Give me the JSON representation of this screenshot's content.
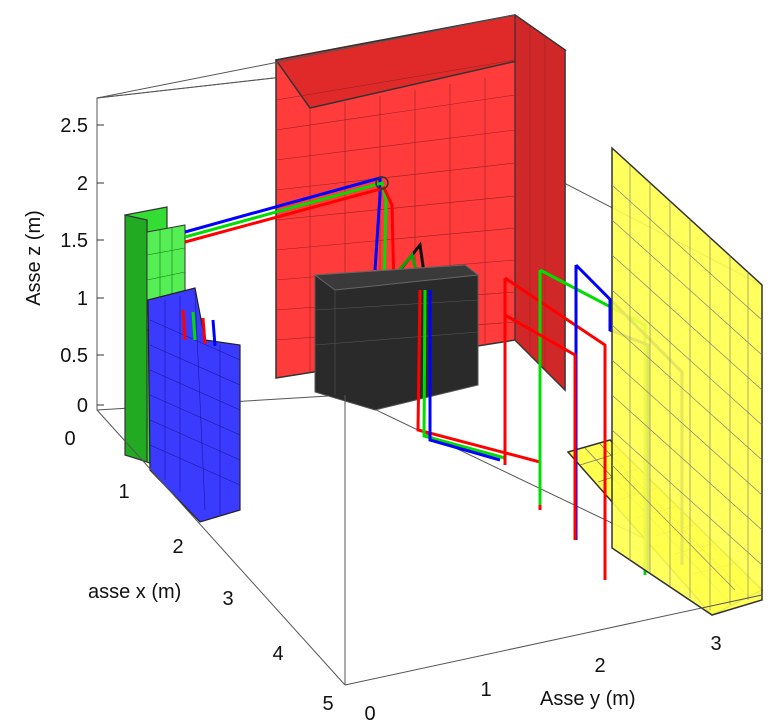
{
  "figure": {
    "z_axis": {
      "label": "Asse z (m)",
      "ticks": [
        "0",
        "0.5",
        "1",
        "1.5",
        "2",
        "2.5"
      ]
    },
    "x_axis": {
      "label": "asse x (m)",
      "ticks": [
        "0",
        "1",
        "2",
        "3",
        "4",
        "5"
      ]
    },
    "y_axis": {
      "label": "Asse y (m)",
      "ticks": [
        "0",
        "1",
        "2",
        "3"
      ]
    },
    "colors": {
      "red_panel": "#ff3030",
      "yellow_panel": "#ffff4d",
      "blue_panel": "#3b3bff",
      "green_panel": "#33dd33",
      "black_box": "#1c1c1c",
      "wire_red": "#ff0000",
      "wire_green": "#00dd00",
      "wire_blue": "#0000ff"
    }
  }
}
